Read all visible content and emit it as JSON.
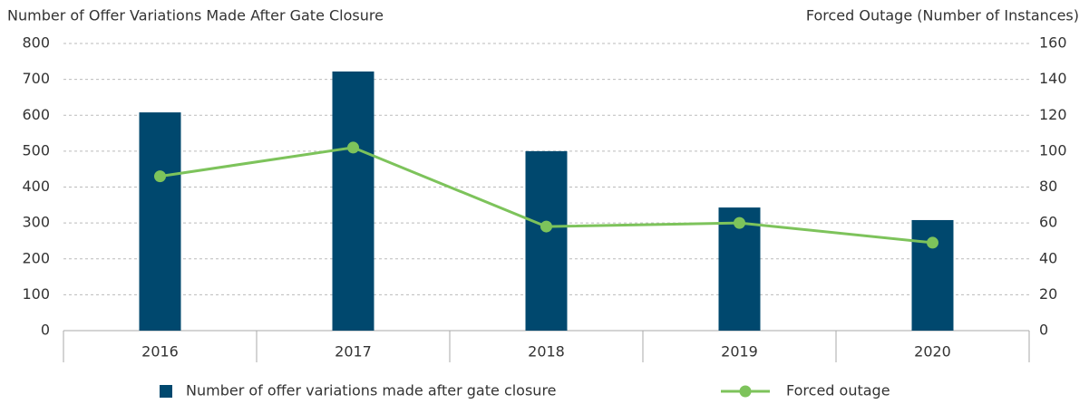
{
  "chart_data": {
    "type": "bar",
    "y_label": "Number of Offer Variations Made After Gate Closure",
    "y2_label": "Forced Outage (Number of Instances)",
    "categories": [
      "2016",
      "2017",
      "2018",
      "2019",
      "2020"
    ],
    "series": [
      {
        "name": "Number of offer variations made after gate closure",
        "type": "bar",
        "color": "#00486e",
        "values": [
          608,
          722,
          500,
          343,
          308
        ]
      },
      {
        "name": "Forced outage",
        "type": "line",
        "axis": "y2",
        "color": "#7dc35b",
        "values": [
          86,
          102,
          58,
          60,
          49
        ]
      }
    ],
    "ylim": [
      0,
      800
    ],
    "yticks": [
      0,
      100,
      200,
      300,
      400,
      500,
      600,
      700,
      800
    ],
    "y2lim": [
      0,
      160
    ],
    "y2ticks": [
      0,
      20,
      40,
      60,
      80,
      100,
      120,
      140,
      160
    ],
    "grid": true,
    "legend": "bottom"
  }
}
